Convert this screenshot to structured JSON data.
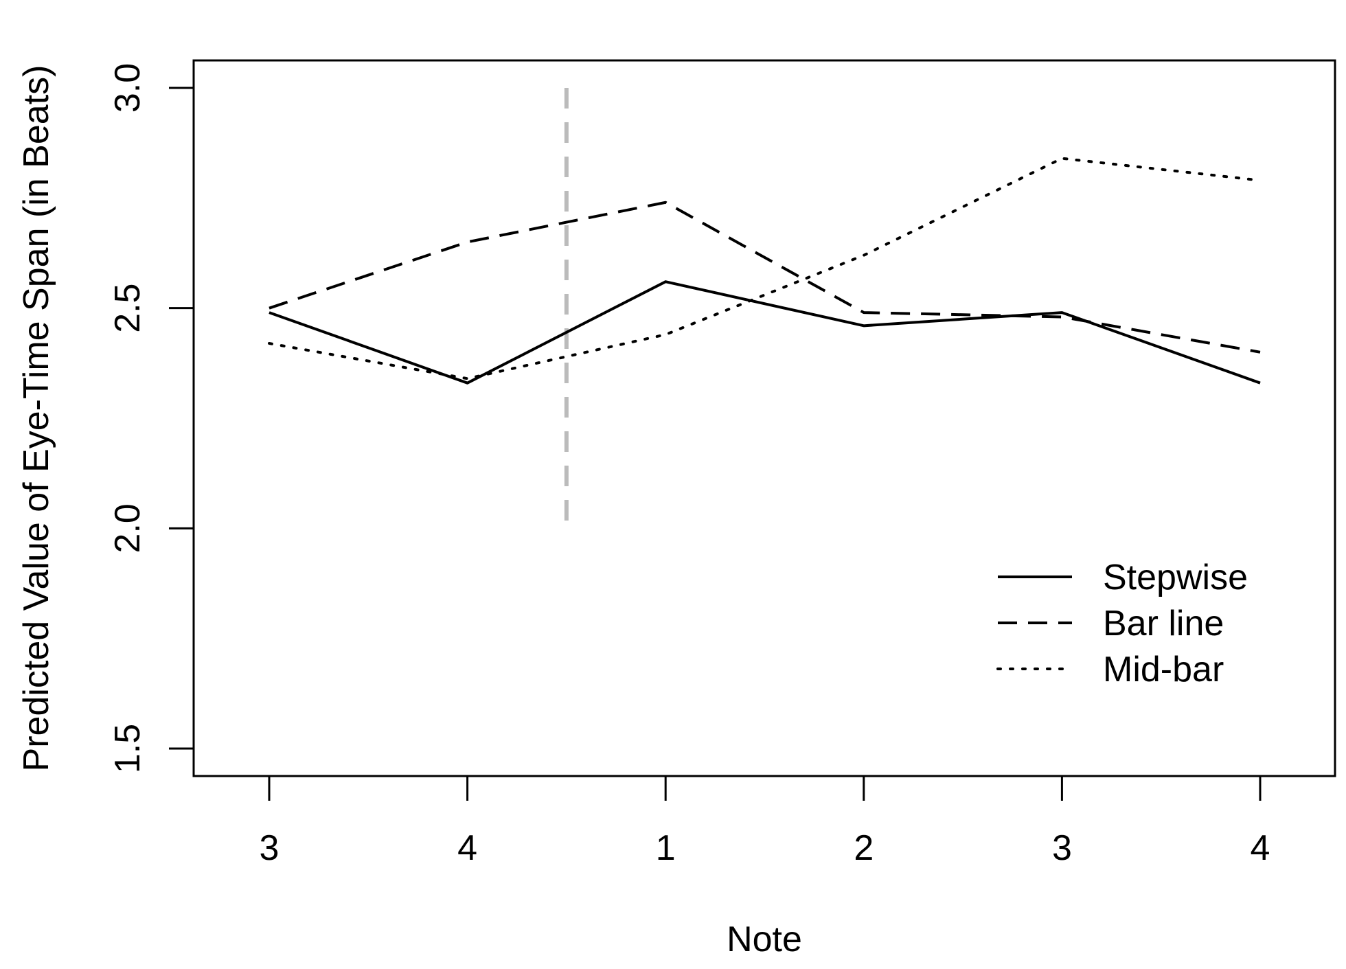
{
  "chart_data": {
    "type": "line",
    "title": "",
    "xlabel": "Note",
    "ylabel": "Predicted Value of Eye-Time Span (in Beats)",
    "categories": [
      "3",
      "4",
      "1",
      "2",
      "3",
      "4"
    ],
    "ylim": [
      1.5,
      3.0
    ],
    "yticks": [
      1.5,
      2.0,
      2.5,
      3.0
    ],
    "ytick_labels": [
      "1.5",
      "2.0",
      "2.5",
      "3.0"
    ],
    "grid": false,
    "legend_position": "bottom-right",
    "series": [
      {
        "name": "Stepwise",
        "style": "solid",
        "color": "#000000",
        "values": [
          2.49,
          2.33,
          2.56,
          2.46,
          2.49,
          2.33
        ]
      },
      {
        "name": "Bar line",
        "style": "dashed",
        "color": "#000000",
        "values": [
          2.5,
          2.65,
          2.74,
          2.49,
          2.48,
          2.4
        ]
      },
      {
        "name": "Mid-bar",
        "style": "dotted",
        "color": "#000000",
        "values": [
          2.42,
          2.34,
          2.44,
          2.62,
          2.84,
          2.79
        ]
      }
    ],
    "reference_line": {
      "between_categories": [
        1,
        2
      ],
      "y_range": [
        2.0,
        3.0
      ],
      "style": "dashed",
      "color": "#bbbbbb"
    }
  }
}
